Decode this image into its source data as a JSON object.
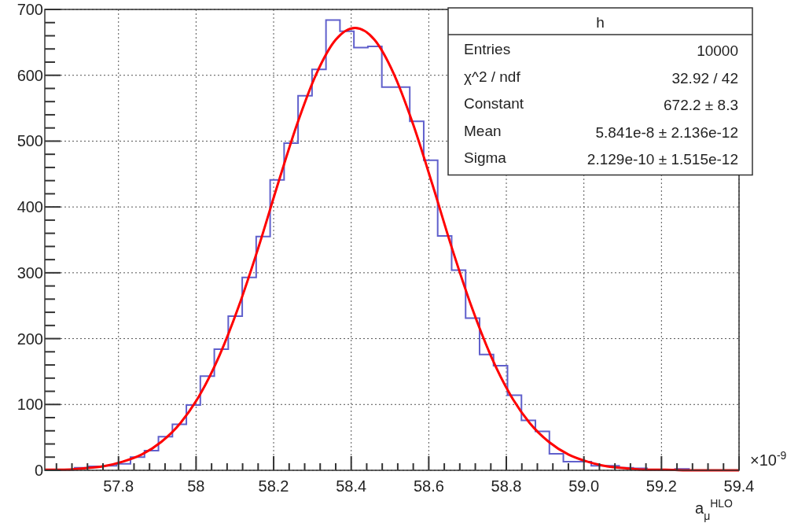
{
  "chart_data": {
    "type": "histogram",
    "xlabel": "a$_{μ}$$^{HLO}$",
    "xlim": [
      57.61,
      59.4
    ],
    "ylim": [
      0,
      700
    ],
    "xticks": [
      57.8,
      58,
      58.2,
      58.4,
      58.6,
      58.8,
      {
        "value": 59,
        "label": "59.0"
      },
      59.2,
      59.4
    ],
    "yticks": [
      0,
      100,
      200,
      300,
      400,
      500,
      600,
      700
    ],
    "grid": true,
    "bins": [
      57.615,
      57.651,
      57.687,
      57.723,
      57.759,
      57.795,
      57.831,
      57.867,
      57.903,
      57.939,
      57.975,
      58.011,
      58.047,
      58.083,
      58.119,
      58.155,
      58.191,
      58.227,
      58.263,
      58.299,
      58.335,
      58.371,
      58.407,
      58.443,
      58.479,
      58.515,
      58.551,
      58.587,
      58.623,
      58.659,
      58.695,
      58.731,
      58.767,
      58.803,
      58.839,
      58.875,
      58.911,
      58.947,
      58.983,
      59.019,
      59.055,
      59.091,
      59.127,
      59.163,
      59.199,
      59.235,
      59.271,
      59.307,
      59.343,
      59.379
    ],
    "series": [
      {
        "type": "histogram",
        "color": "#6060cc",
        "values": [
          0,
          1,
          4,
          6,
          7,
          10,
          20,
          30,
          51,
          70,
          99,
          143,
          184,
          234,
          293,
          355,
          441,
          497,
          569,
          609,
          684,
          667,
          642,
          644,
          582,
          582,
          530,
          471,
          356,
          304,
          231,
          176,
          159,
          114,
          76,
          59,
          25,
          13,
          13,
          7,
          7,
          4,
          3,
          1,
          1,
          2,
          0,
          0,
          0
        ]
      },
      {
        "type": "line",
        "color": "#ff0000",
        "x": [
          57.61,
          57.66,
          57.71,
          57.76,
          57.81,
          57.86,
          57.91,
          57.96,
          58.01,
          58.06,
          58.11,
          58.16,
          58.21,
          58.26,
          58.31,
          58.36,
          58.41,
          58.46,
          58.51,
          58.56,
          58.61,
          58.66,
          58.71,
          58.76,
          58.81,
          58.86,
          58.91,
          58.96,
          59.01,
          59.06,
          59.11,
          59.16,
          59.21,
          59.26,
          59.31,
          59.36,
          59.4
        ],
        "values": [
          1,
          1,
          3,
          6,
          13,
          24,
          43,
          72,
          115,
          174,
          249,
          337,
          433,
          525,
          602,
          654,
          672,
          654,
          602,
          525,
          433,
          337,
          249,
          174,
          115,
          72,
          43,
          24,
          13,
          6,
          3,
          1,
          1,
          0,
          0,
          0,
          0
        ]
      }
    ],
    "annotations": [
      "h",
      "Entries",
      "10000",
      "χ^2 / ndf",
      "32.92 / 42",
      "Constant",
      "672.2 ± 8.3",
      "Mean",
      "5.841e-8 ± 2.136e-12",
      "Sigma",
      "2.129e-10 ± 1.515e-12",
      "×10$^{-9}$"
    ]
  }
}
